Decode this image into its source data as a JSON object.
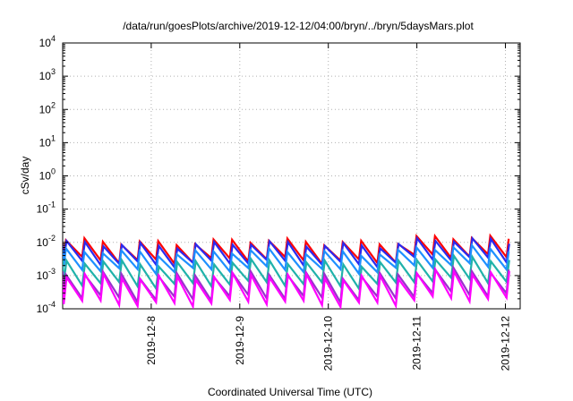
{
  "chart_data": {
    "type": "line",
    "title": "/data/run/goesPlots/archive/2019-12-12/04:00/bryn/../bryn/5daysMars.plot",
    "xlabel": "Coordinated Universal Time (UTC)",
    "ylabel": "cSv/day",
    "y_scale": "log",
    "ylim": [
      0.0001,
      10000
    ],
    "y_ticks": [
      {
        "base": "10",
        "exp": "-4"
      },
      {
        "base": "10",
        "exp": "-3"
      },
      {
        "base": "10",
        "exp": "-2"
      },
      {
        "base": "10",
        "exp": "-1"
      },
      {
        "base": "10",
        "exp": "0"
      },
      {
        "base": "10",
        "exp": "1"
      },
      {
        "base": "10",
        "exp": "2"
      },
      {
        "base": "10",
        "exp": "3"
      },
      {
        "base": "10",
        "exp": "4"
      }
    ],
    "x_tick_labels": [
      "2019-12-8",
      "2019-12-9",
      "2019-12-10",
      "2019-12-11",
      "2019-12-12"
    ],
    "xlim": [
      "2019-12-07 00:00",
      "2019-12-12 04:00"
    ],
    "grid": true,
    "legend": "none",
    "period_hours": 5,
    "series": [
      {
        "color": "#ff0000",
        "peak": 0.0105,
        "trough": 0.0029
      },
      {
        "color": "#2a2af0",
        "peak": 0.0088,
        "trough": 0.0024
      },
      {
        "color": "#1e90ff",
        "peak": 0.0052,
        "trough": 0.0015
      },
      {
        "color": "#20b2aa",
        "peak": 0.0025,
        "trough": 0.00055
      },
      {
        "color": "#9932cc",
        "peak": 0.0011,
        "trough": 0.00021
      },
      {
        "color": "#ff00ff",
        "peak": 0.00095,
        "trough": 0.00015
      }
    ]
  }
}
